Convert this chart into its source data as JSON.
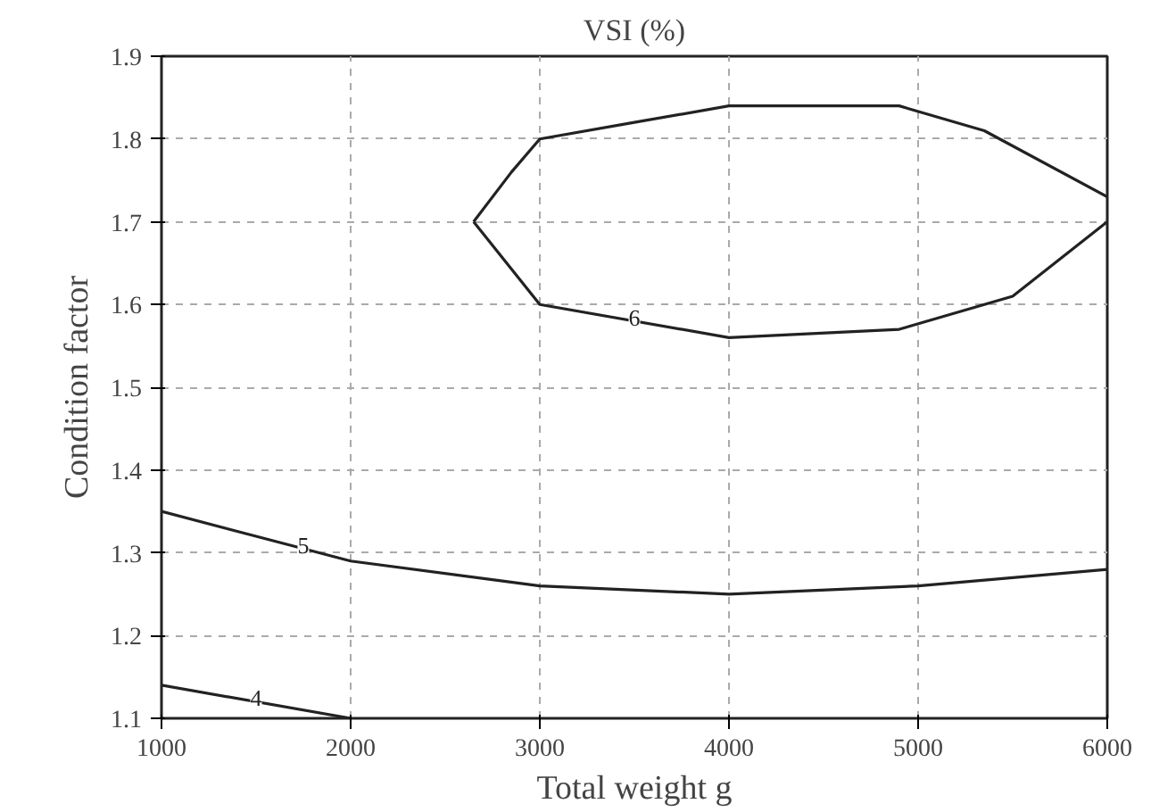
{
  "chart_data": {
    "type": "line",
    "title": "VSI (%)",
    "xlabel": "Total weight g",
    "ylabel": "Condition factor",
    "xlim": [
      1000,
      6000
    ],
    "ylim": [
      1.1,
      1.9
    ],
    "xticks": [
      1000,
      2000,
      3000,
      4000,
      5000,
      6000
    ],
    "yticks": [
      1.1,
      1.2,
      1.3,
      1.4,
      1.5,
      1.6,
      1.7,
      1.8,
      1.9
    ],
    "grid": true,
    "line_style": "solid",
    "marker": "none",
    "series": [
      {
        "name": "4",
        "color": "#222222",
        "x": [
          1000,
          2000
        ],
        "values": [
          1.14,
          1.1
        ]
      },
      {
        "name": "5",
        "color": "#222222",
        "x": [
          1000,
          1500,
          2000,
          3000,
          4000,
          5000,
          6000
        ],
        "values": [
          1.35,
          1.32,
          1.29,
          1.26,
          1.25,
          1.26,
          1.28
        ]
      },
      {
        "color": "#222222",
        "x": [
          2650,
          2850,
          3000,
          3500,
          4000,
          4900,
          5350,
          6000
        ],
        "values": [
          1.7,
          1.76,
          1.8,
          1.82,
          1.84,
          1.84,
          1.81,
          1.73
        ]
      },
      {
        "name": "6",
        "color": "#222222",
        "x": [
          2650,
          3000,
          4000,
          4900,
          5500,
          6000
        ],
        "values": [
          1.7,
          1.6,
          1.56,
          1.57,
          1.61,
          1.7
        ]
      }
    ]
  }
}
